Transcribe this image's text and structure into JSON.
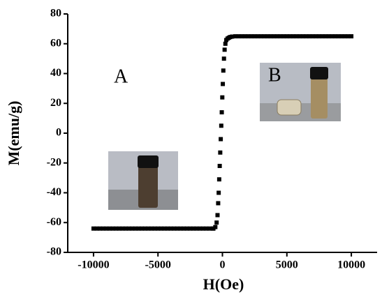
{
  "chart_data": {
    "type": "scatter",
    "x_label": "H(Oe)",
    "y_label": "M(emu/g)",
    "annotations": [
      "A",
      "B"
    ],
    "color": "#000000",
    "xlim": [
      -12000,
      12000
    ],
    "xticks": [
      -10000,
      -5000,
      0,
      5000,
      10000
    ],
    "ylim": [
      -80,
      80
    ],
    "yticks": [
      -80,
      -60,
      -40,
      -20,
      0,
      20,
      40,
      60,
      80
    ],
    "x": [
      -10000,
      -9750,
      -9500,
      -9250,
      -9000,
      -8750,
      -8500,
      -8250,
      -8000,
      -7750,
      -7500,
      -7250,
      -7000,
      -6750,
      -6500,
      -6250,
      -6000,
      -5750,
      -5500,
      -5250,
      -5000,
      -4750,
      -4500,
      -4250,
      -4000,
      -3750,
      -3500,
      -3250,
      -3000,
      -2750,
      -2500,
      -2250,
      -2000,
      -1750,
      -1500,
      -1250,
      -1000,
      -750,
      -700,
      -550,
      -450,
      -380,
      -330,
      -290,
      -250,
      -210,
      -170,
      -130,
      -90,
      -50,
      -10,
      30,
      70,
      120,
      170,
      230,
      300,
      400,
      500,
      600,
      750,
      1000,
      1250,
      1500,
      1750,
      2000,
      2250,
      2500,
      2750,
      3000,
      3250,
      3500,
      3750,
      4000,
      4250,
      4500,
      4750,
      5000,
      5250,
      5500,
      5750,
      6000,
      6250,
      6500,
      6750,
      7000,
      7250,
      7500,
      7750,
      8000,
      8250,
      8500,
      8750,
      9000,
      9250,
      9500,
      9750,
      10000
    ],
    "values": [
      -64,
      -64,
      -64,
      -64,
      -64,
      -64,
      -64,
      -64,
      -64,
      -64,
      -64,
      -64,
      -64,
      -64,
      -64,
      -64,
      -64,
      -64,
      -64,
      -64,
      -64,
      -64,
      -64,
      -64,
      -64,
      -64,
      -64,
      -64,
      -64,
      -64,
      -64,
      -64,
      -64,
      -64,
      -64,
      -64,
      -64,
      -64,
      -64,
      -63,
      -60,
      -55,
      -47,
      -40,
      -31,
      -22,
      -13,
      -4,
      5,
      14,
      24,
      33,
      42,
      50,
      56,
      60,
      62.5,
      63.5,
      64,
      64.5,
      64.8,
      65,
      65,
      65,
      65,
      65,
      65,
      65,
      65,
      65,
      65,
      65,
      65,
      65,
      65,
      65,
      65,
      65,
      65,
      65,
      65,
      65,
      65,
      65,
      65,
      65,
      65,
      65,
      65,
      65,
      65,
      65,
      65,
      65,
      65,
      65,
      65,
      65
    ]
  }
}
